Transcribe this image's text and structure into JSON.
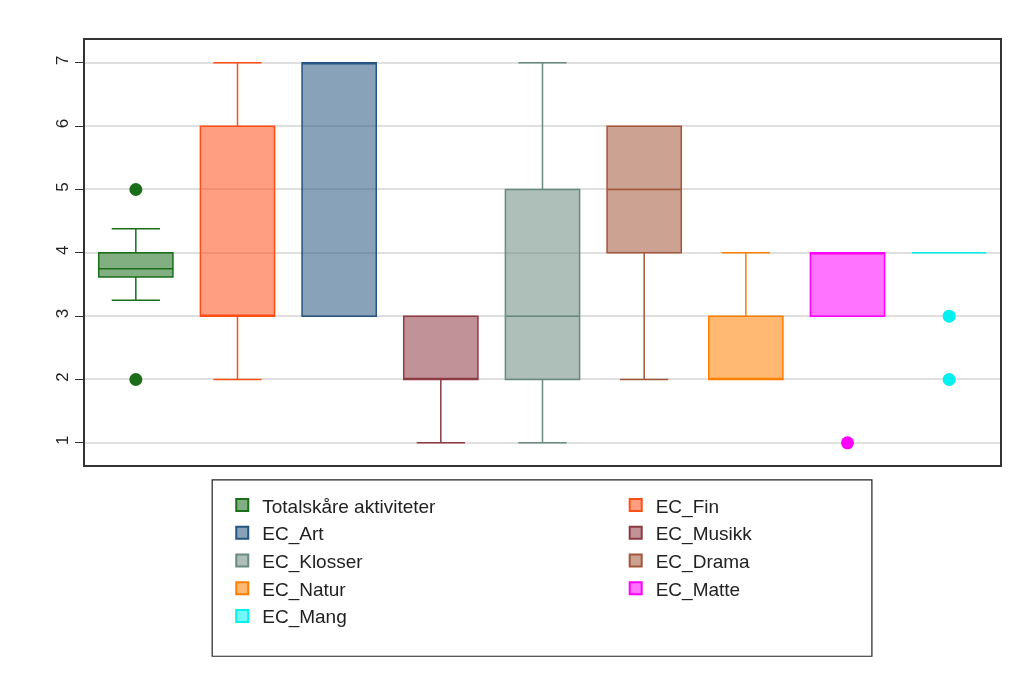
{
  "chart_data": {
    "type": "box",
    "categories": [
      null,
      null,
      null,
      null,
      null,
      null,
      null,
      null,
      null
    ],
    "ylim": [
      0.65,
      7.36
    ],
    "yticks": [
      1,
      2,
      3,
      4,
      5,
      6,
      7
    ],
    "grid": "y",
    "legend": "bottom",
    "marker": "circle",
    "series": [
      {
        "name": "Totalskåre aktiviteter",
        "color": "#1a6e1a",
        "boxes": [
          {
            "low": 3.25,
            "q1": 3.62,
            "median": 3.75,
            "q3": 4.0,
            "high": 4.38,
            "outliers": [
              2,
              5
            ]
          },
          null,
          null,
          null,
          null,
          null,
          null,
          null,
          null
        ]
      },
      {
        "name": "EC_Fin",
        "color": "#ff4f17",
        "boxes": [
          null,
          {
            "low": 2,
            "q1": 3,
            "median": 3,
            "q3": 6,
            "high": 7
          },
          null,
          null,
          null,
          null,
          null,
          null,
          null
        ]
      },
      {
        "name": "EC_Art",
        "color": "#255580",
        "boxes": [
          null,
          null,
          {
            "low": 3,
            "q1": 3,
            "median": 7,
            "q3": 7,
            "high": 7
          },
          null,
          null,
          null,
          null,
          null,
          null
        ]
      },
      {
        "name": "EC_Musikk",
        "color": "#8e3a44",
        "boxes": [
          null,
          null,
          null,
          {
            "low": 1,
            "q1": 2,
            "median": 2,
            "q3": 3,
            "high": 3
          },
          null,
          null,
          null,
          null,
          null
        ]
      },
      {
        "name": "EC_Klosser",
        "color": "#6a8a7e",
        "boxes": [
          null,
          null,
          null,
          null,
          {
            "low": 1,
            "q1": 2,
            "median": 3,
            "q3": 5,
            "high": 7
          },
          null,
          null,
          null,
          null
        ]
      },
      {
        "name": "EC_Drama",
        "color": "#a2573a",
        "boxes": [
          null,
          null,
          null,
          null,
          null,
          {
            "low": 2,
            "q1": 4,
            "median": 5,
            "q3": 6,
            "high": 6
          },
          null,
          null,
          null
        ]
      },
      {
        "name": "EC_Natur",
        "color": "#ff8000",
        "boxes": [
          null,
          null,
          null,
          null,
          null,
          null,
          {
            "low": 2,
            "q1": 2,
            "median": 2,
            "q3": 3,
            "high": 4
          },
          null,
          null
        ]
      },
      {
        "name": "EC_Matte",
        "color": "#ff00ff",
        "boxes": [
          null,
          null,
          null,
          null,
          null,
          null,
          null,
          {
            "low": 3,
            "q1": 3,
            "median": 4,
            "q3": 4,
            "high": 4,
            "outliers": [
              1
            ]
          },
          null
        ]
      },
      {
        "name": "EC_Mang",
        "color": "#00f0f0",
        "boxes": [
          null,
          null,
          null,
          null,
          null,
          null,
          null,
          null,
          {
            "low": 4,
            "q1": 4,
            "median": 4,
            "q3": 4,
            "high": 4,
            "outliers": [
              2,
              3
            ]
          }
        ]
      }
    ]
  }
}
